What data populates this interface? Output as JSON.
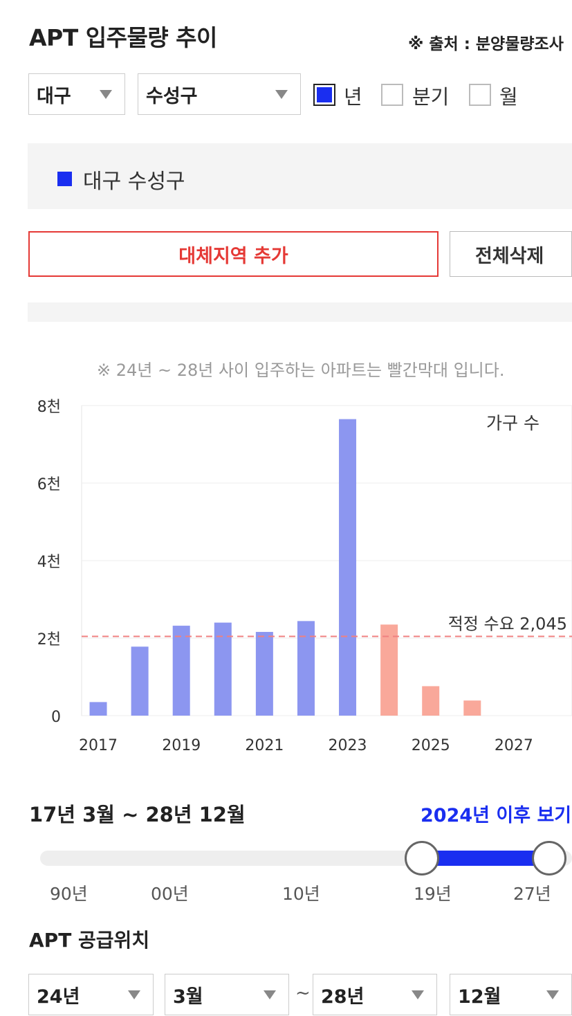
{
  "header": {
    "title": "APT 입주물량 추이",
    "source": "※ 출처 : 분양물량조사"
  },
  "filters": {
    "city": "대구",
    "district": "수성구",
    "periods": [
      {
        "label": "년",
        "checked": true
      },
      {
        "label": "분기",
        "checked": false
      },
      {
        "label": "월",
        "checked": false
      }
    ]
  },
  "legend": {
    "label": "대구 수성구",
    "color": "#1a2ef0"
  },
  "buttons": {
    "add_region": "대체지역 추가",
    "delete_all": "전체삭제"
  },
  "note": "※ 24년 ~ 28년 사이 입주하는 아파트는 빨간막대 입니다.",
  "chart_data": {
    "type": "bar",
    "ylabel": "가구 수",
    "ylim": [
      0,
      8000
    ],
    "yticks": [
      0,
      2000,
      4000,
      6000,
      8000
    ],
    "ytick_labels": [
      "0",
      "2천",
      "4천",
      "6천",
      "8천"
    ],
    "xlim": [
      2016.6,
      2028.4
    ],
    "xticks": [
      2017,
      2019,
      2021,
      2023,
      2025,
      2027
    ],
    "categories": [
      2017,
      2018,
      2019,
      2020,
      2021,
      2022,
      2023,
      2024,
      2025,
      2026
    ],
    "values": [
      350,
      1780,
      2320,
      2400,
      2160,
      2440,
      7650,
      2350,
      760,
      390
    ],
    "colors": {
      "past": "#8c96f0",
      "future": "#f9a89a"
    },
    "future_from": 2024,
    "reference_line": {
      "value": 2045,
      "label": "적정 수요 2,045",
      "color": "#f08080"
    }
  },
  "range": {
    "label": "17년 3월 ~ 28년 12월",
    "after_link": "2024년 이후 보기",
    "slider_ticks": [
      "90년",
      "00년",
      "10년",
      "19년",
      "27년"
    ]
  },
  "supply": {
    "title": "APT 공급위치",
    "from_year": "24년",
    "from_month": "3월",
    "to_year": "28년",
    "to_month": "12월",
    "separator": "~"
  }
}
